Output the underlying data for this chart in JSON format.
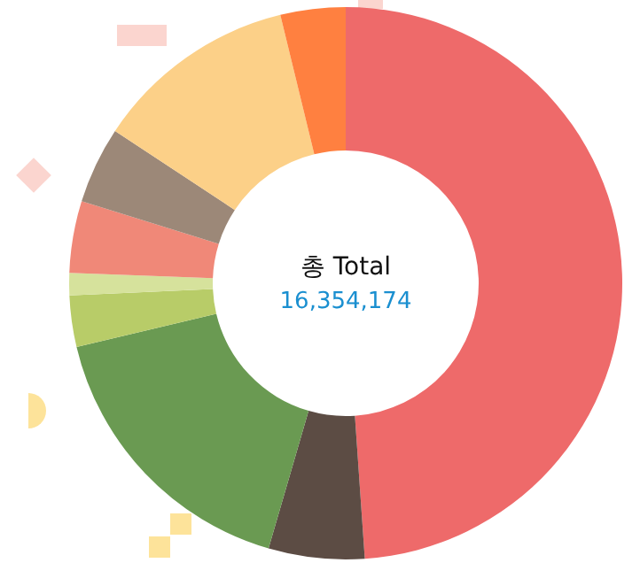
{
  "chart_data": {
    "type": "donut",
    "categories": [
      null,
      null,
      null,
      null,
      null,
      null,
      null,
      null,
      null
    ],
    "values": [
      48.9,
      5.6,
      16.8,
      3.0,
      1.3,
      4.2,
      4.5,
      11.9,
      3.8
    ],
    "colors": [
      "#ee6a6a",
      "#5c4c44",
      "#6a9a52",
      "#b8cc68",
      "#d6e29c",
      "#f08878",
      "#9c8878",
      "#fcd088",
      "#ff8040"
    ],
    "annotations": [
      "총 Total",
      "16,354,174"
    ]
  }
}
